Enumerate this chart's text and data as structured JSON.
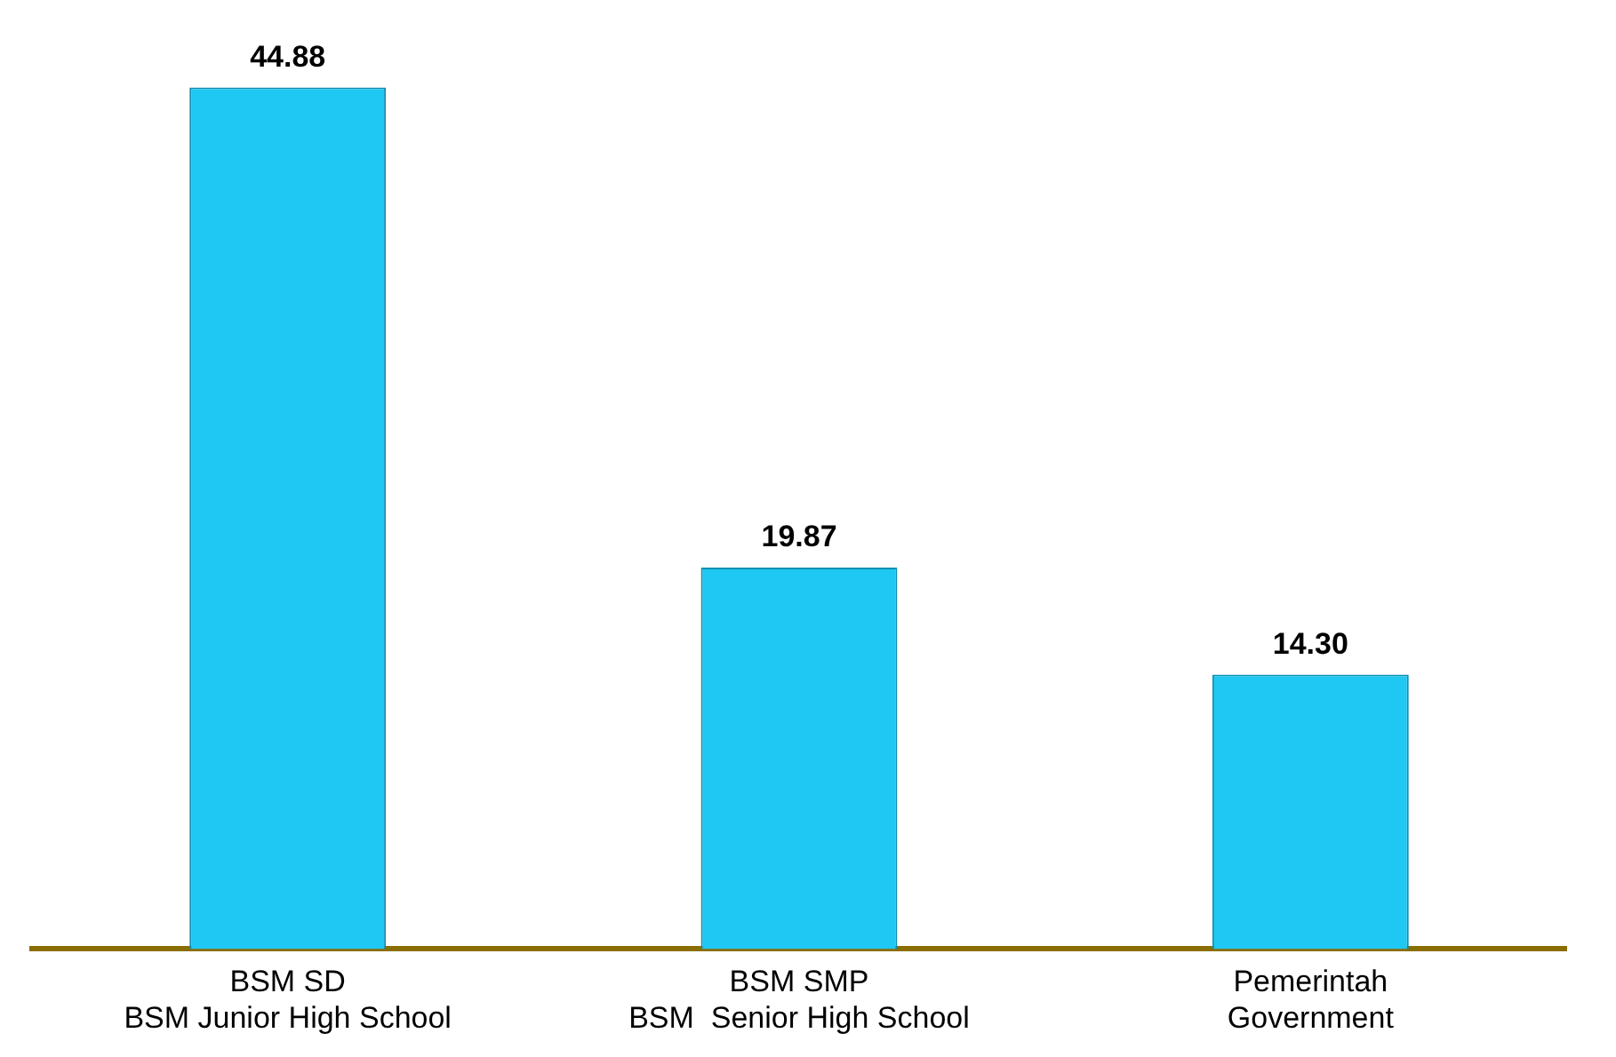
{
  "chart_data": {
    "type": "bar",
    "categories": [
      "BSM SD\nBSM Junior High School",
      "BSM SMP\nBSM  Senior High School",
      "Pemerintah\nGovernment"
    ],
    "values": [
      44.88,
      19.87,
      14.3
    ],
    "value_labels": [
      "44.88",
      "19.87",
      "14.30"
    ],
    "color": "#1ec8f2",
    "tick_labels": "x",
    "grid": false,
    "legend": false
  }
}
